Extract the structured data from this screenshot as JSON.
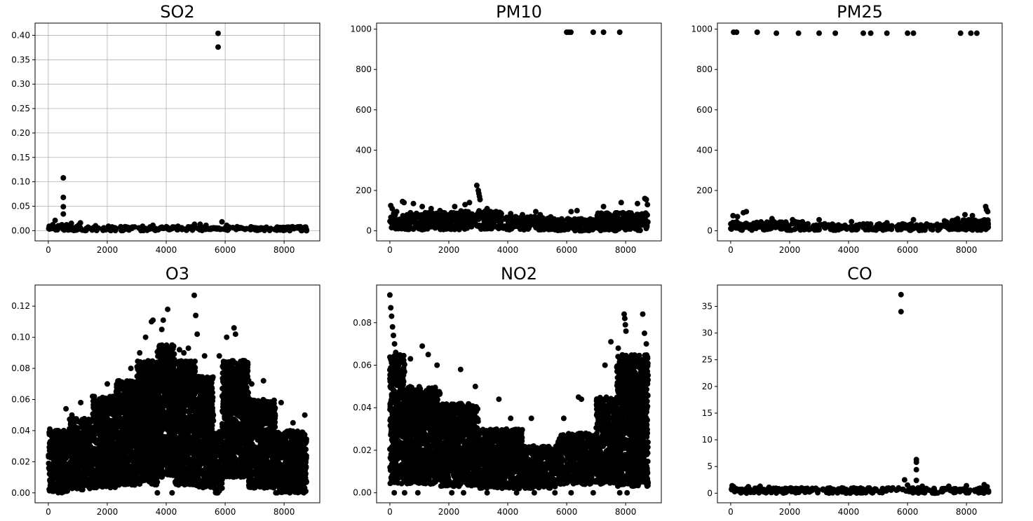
{
  "chart_data": [
    {
      "type": "scatter",
      "title": "SO2",
      "grid": true,
      "xlim": [
        -450,
        9210
      ],
      "ylim": [
        -0.021,
        0.425
      ],
      "xticks": [
        0,
        2000,
        4000,
        6000,
        8000
      ],
      "xticklabels": [
        "0",
        "2000",
        "4000",
        "6000",
        "8000"
      ],
      "yticks": [
        0,
        0.05,
        0.1,
        0.15,
        0.2,
        0.25,
        0.3,
        0.35,
        0.4
      ],
      "yticklabels": [
        "0.00",
        "0.05",
        "0.10",
        "0.15",
        "0.20",
        "0.25",
        "0.30",
        "0.35",
        "0.40"
      ],
      "marker_color": "#000000",
      "bands": [
        {
          "x": [
            0,
            8760
          ],
          "y": [
            0.0,
            0.008
          ]
        }
      ],
      "points": [
        [
          30,
          0.009
        ],
        [
          150,
          0.012
        ],
        [
          230,
          0.021
        ],
        [
          340,
          0.01
        ],
        [
          460,
          0.012
        ],
        [
          510,
          0.108
        ],
        [
          510,
          0.068
        ],
        [
          510,
          0.049
        ],
        [
          510,
          0.034
        ],
        [
          620,
          0.012
        ],
        [
          780,
          0.015
        ],
        [
          1040,
          0.012
        ],
        [
          1090,
          0.016
        ],
        [
          1600,
          0.01
        ],
        [
          2040,
          0.009
        ],
        [
          2600,
          0.008
        ],
        [
          3200,
          0.009
        ],
        [
          3550,
          0.011
        ],
        [
          4400,
          0.009
        ],
        [
          4960,
          0.013
        ],
        [
          5150,
          0.013
        ],
        [
          5350,
          0.011
        ],
        [
          5760,
          0.404
        ],
        [
          5760,
          0.376
        ],
        [
          5890,
          0.018
        ],
        [
          6050,
          0.011
        ],
        [
          7300,
          0.005
        ],
        [
          8100,
          0.007
        ],
        [
          8550,
          0.008
        ],
        [
          8700,
          0.007
        ]
      ]
    },
    {
      "type": "scatter",
      "title": "PM10",
      "grid": false,
      "xlim": [
        -450,
        9210
      ],
      "ylim": [
        -50,
        1030
      ],
      "xticks": [
        0,
        2000,
        4000,
        6000,
        8000
      ],
      "xticklabels": [
        "0",
        "2000",
        "4000",
        "6000",
        "8000"
      ],
      "yticks": [
        0,
        200,
        400,
        600,
        800,
        1000
      ],
      "yticklabels": [
        "0",
        "200",
        "400",
        "600",
        "800",
        "1000"
      ],
      "marker_color": "#000000",
      "bands": [
        {
          "x": [
            0,
            2400
          ],
          "y": [
            5,
            90
          ]
        },
        {
          "x": [
            2400,
            3800
          ],
          "y": [
            8,
            100
          ]
        },
        {
          "x": [
            3800,
            5500
          ],
          "y": [
            5,
            70
          ]
        },
        {
          "x": [
            5500,
            7000
          ],
          "y": [
            0,
            60
          ]
        },
        {
          "x": [
            7000,
            8760
          ],
          "y": [
            0,
            90
          ]
        }
      ],
      "points": [
        [
          30,
          125
        ],
        [
          80,
          110
        ],
        [
          230,
          95
        ],
        [
          430,
          145
        ],
        [
          480,
          140
        ],
        [
          800,
          135
        ],
        [
          1100,
          120
        ],
        [
          1400,
          110
        ],
        [
          1700,
          100
        ],
        [
          2200,
          120
        ],
        [
          2550,
          130
        ],
        [
          2700,
          140
        ],
        [
          2950,
          225
        ],
        [
          3000,
          200
        ],
        [
          3020,
          185
        ],
        [
          3040,
          170
        ],
        [
          3060,
          155
        ],
        [
          3300,
          110
        ],
        [
          3600,
          95
        ],
        [
          4100,
          85
        ],
        [
          4500,
          80
        ],
        [
          4950,
          95
        ],
        [
          5100,
          80
        ],
        [
          6150,
          95
        ],
        [
          6350,
          100
        ],
        [
          7250,
          120
        ],
        [
          7850,
          140
        ],
        [
          8400,
          135
        ],
        [
          8650,
          160
        ],
        [
          8700,
          155
        ],
        [
          8740,
          130
        ],
        [
          6000,
          985
        ],
        [
          6070,
          985
        ],
        [
          6140,
          985
        ],
        [
          6900,
          985
        ],
        [
          7250,
          985
        ],
        [
          7800,
          985
        ]
      ]
    },
    {
      "type": "scatter",
      "title": "PM25",
      "grid": false,
      "xlim": [
        -450,
        9210
      ],
      "ylim": [
        -50,
        1030
      ],
      "xticks": [
        0,
        2000,
        4000,
        6000,
        8000
      ],
      "xticklabels": [
        "0",
        "2000",
        "4000",
        "6000",
        "8000"
      ],
      "yticks": [
        0,
        200,
        400,
        600,
        800,
        1000
      ],
      "yticklabels": [
        "0",
        "200",
        "400",
        "600",
        "800",
        "1000"
      ],
      "marker_color": "#000000",
      "bands": [
        {
          "x": [
            0,
            2500
          ],
          "y": [
            3,
            45
          ]
        },
        {
          "x": [
            2500,
            5500
          ],
          "y": [
            3,
            35
          ]
        },
        {
          "x": [
            5500,
            7200
          ],
          "y": [
            2,
            35
          ]
        },
        {
          "x": [
            7200,
            8760
          ],
          "y": [
            3,
            55
          ]
        }
      ],
      "points": [
        [
          80,
          75
        ],
        [
          230,
          70
        ],
        [
          430,
          90
        ],
        [
          530,
          95
        ],
        [
          1400,
          60
        ],
        [
          2100,
          55
        ],
        [
          3000,
          55
        ],
        [
          4100,
          45
        ],
        [
          5300,
          40
        ],
        [
          6200,
          55
        ],
        [
          7700,
          60
        ],
        [
          7950,
          80
        ],
        [
          8200,
          75
        ],
        [
          8650,
          120
        ],
        [
          8680,
          105
        ],
        [
          8720,
          95
        ],
        [
          100,
          985
        ],
        [
          200,
          985
        ],
        [
          900,
          985
        ],
        [
          1550,
          980
        ],
        [
          2300,
          980
        ],
        [
          3000,
          980
        ],
        [
          3550,
          980
        ],
        [
          4500,
          980
        ],
        [
          4750,
          980
        ],
        [
          5300,
          980
        ],
        [
          6000,
          980
        ],
        [
          6200,
          980
        ],
        [
          7800,
          980
        ],
        [
          8150,
          980
        ],
        [
          8350,
          980
        ]
      ]
    },
    {
      "type": "scatter",
      "title": "O3",
      "grid": false,
      "xlim": [
        -450,
        9210
      ],
      "ylim": [
        -0.0064,
        0.1336
      ],
      "xticks": [
        0,
        2000,
        4000,
        6000,
        8000
      ],
      "xticklabels": [
        "0",
        "2000",
        "4000",
        "6000",
        "8000"
      ],
      "yticks": [
        0,
        0.02,
        0.04,
        0.06,
        0.08,
        0.1,
        0.12
      ],
      "yticklabels": [
        "0.00",
        "0.02",
        "0.04",
        "0.06",
        "0.08",
        "0.10",
        "0.12"
      ],
      "marker_color": "#000000",
      "bands": [
        {
          "x": [
            0,
            700
          ],
          "y": [
            0.0,
            0.04
          ]
        },
        {
          "x": [
            700,
            1500
          ],
          "y": [
            0.002,
            0.048
          ]
        },
        {
          "x": [
            1500,
            2300
          ],
          "y": [
            0.003,
            0.062
          ]
        },
        {
          "x": [
            2300,
            3000
          ],
          "y": [
            0.005,
            0.072
          ]
        },
        {
          "x": [
            3000,
            3700
          ],
          "y": [
            0.005,
            0.085
          ]
        },
        {
          "x": [
            3700,
            4300
          ],
          "y": [
            0.01,
            0.095
          ]
        },
        {
          "x": [
            4300,
            5000
          ],
          "y": [
            0.005,
            0.085
          ]
        },
        {
          "x": [
            5000,
            5600
          ],
          "y": [
            0.003,
            0.075
          ]
        },
        {
          "x": [
            5600,
            5900
          ],
          "y": [
            0.0,
            0.04
          ]
        },
        {
          "x": [
            5900,
            6800
          ],
          "y": [
            0.01,
            0.085
          ]
        },
        {
          "x": [
            6800,
            7700
          ],
          "y": [
            0.003,
            0.06
          ]
        },
        {
          "x": [
            7700,
            8760
          ],
          "y": [
            0.0,
            0.04
          ]
        }
      ],
      "points": [
        [
          50,
          0.041
        ],
        [
          300,
          0.04
        ],
        [
          600,
          0.054
        ],
        [
          800,
          0.05
        ],
        [
          1100,
          0.058
        ],
        [
          1500,
          0.062
        ],
        [
          2000,
          0.07
        ],
        [
          2400,
          0.072
        ],
        [
          2800,
          0.08
        ],
        [
          3100,
          0.09
        ],
        [
          3300,
          0.1
        ],
        [
          3500,
          0.11
        ],
        [
          3550,
          0.111
        ],
        [
          3850,
          0.105
        ],
        [
          3900,
          0.111
        ],
        [
          4050,
          0.118
        ],
        [
          4200,
          0.095
        ],
        [
          4450,
          0.092
        ],
        [
          4600,
          0.09
        ],
        [
          4750,
          0.093
        ],
        [
          4950,
          0.127
        ],
        [
          5000,
          0.114
        ],
        [
          5050,
          0.102
        ],
        [
          5300,
          0.088
        ],
        [
          5700,
          0.0
        ],
        [
          5800,
          0.088
        ],
        [
          6050,
          0.1
        ],
        [
          6300,
          0.106
        ],
        [
          6350,
          0.102
        ],
        [
          6600,
          0.085
        ],
        [
          6900,
          0.07
        ],
        [
          7300,
          0.072
        ],
        [
          7900,
          0.058
        ],
        [
          8300,
          0.045
        ],
        [
          8700,
          0.05
        ],
        [
          3700,
          0.0
        ],
        [
          4200,
          0.0
        ]
      ]
    },
    {
      "type": "scatter",
      "title": "NO2",
      "grid": false,
      "xlim": [
        -450,
        9210
      ],
      "ylim": [
        -0.0047,
        0.0977
      ],
      "xticks": [
        0,
        2000,
        4000,
        6000,
        8000
      ],
      "xticklabels": [
        "0",
        "2000",
        "4000",
        "6000",
        "8000"
      ],
      "yticks": [
        0,
        0.02,
        0.04,
        0.06,
        0.08
      ],
      "yticklabels": [
        "0.00",
        "0.02",
        "0.04",
        "0.06",
        "0.08"
      ],
      "marker_color": "#000000",
      "bands": [
        {
          "x": [
            0,
            500
          ],
          "y": [
            0.004,
            0.065
          ]
        },
        {
          "x": [
            500,
            1700
          ],
          "y": [
            0.004,
            0.05
          ]
        },
        {
          "x": [
            1700,
            3000
          ],
          "y": [
            0.003,
            0.042
          ]
        },
        {
          "x": [
            3000,
            4500
          ],
          "y": [
            0.002,
            0.03
          ]
        },
        {
          "x": [
            4500,
            5700
          ],
          "y": [
            0.002,
            0.022
          ]
        },
        {
          "x": [
            5700,
            7000
          ],
          "y": [
            0.004,
            0.028
          ]
        },
        {
          "x": [
            7000,
            7700
          ],
          "y": [
            0.004,
            0.045
          ]
        },
        {
          "x": [
            7700,
            8760
          ],
          "y": [
            0.003,
            0.065
          ]
        }
      ],
      "points": [
        [
          0,
          0.093
        ],
        [
          30,
          0.087
        ],
        [
          60,
          0.083
        ],
        [
          90,
          0.078
        ],
        [
          120,
          0.074
        ],
        [
          160,
          0.07
        ],
        [
          200,
          0.066
        ],
        [
          260,
          0.06
        ],
        [
          700,
          0.063
        ],
        [
          1100,
          0.069
        ],
        [
          1300,
          0.065
        ],
        [
          1600,
          0.06
        ],
        [
          2400,
          0.058
        ],
        [
          2900,
          0.05
        ],
        [
          3700,
          0.044
        ],
        [
          4100,
          0.035
        ],
        [
          4800,
          0.035
        ],
        [
          5900,
          0.035
        ],
        [
          6400,
          0.045
        ],
        [
          6500,
          0.044
        ],
        [
          7300,
          0.06
        ],
        [
          7500,
          0.071
        ],
        [
          7750,
          0.068
        ],
        [
          7950,
          0.084
        ],
        [
          7970,
          0.082
        ],
        [
          7990,
          0.079
        ],
        [
          8010,
          0.076
        ],
        [
          8580,
          0.084
        ],
        [
          8640,
          0.075
        ],
        [
          8700,
          0.07
        ],
        [
          150,
          0.0
        ],
        [
          500,
          0.0
        ],
        [
          950,
          0.0
        ],
        [
          2100,
          0.0
        ],
        [
          2500,
          0.0
        ],
        [
          3300,
          0.0
        ],
        [
          4300,
          0.0
        ],
        [
          4900,
          0.0
        ],
        [
          5600,
          0.0
        ],
        [
          6150,
          0.0
        ],
        [
          6900,
          0.0
        ],
        [
          7800,
          0.0
        ],
        [
          8050,
          0.0
        ]
      ]
    },
    {
      "type": "scatter",
      "title": "CO",
      "grid": false,
      "xlim": [
        -450,
        9210
      ],
      "ylim": [
        -1.8,
        39
      ],
      "xticks": [
        0,
        2000,
        4000,
        6000,
        8000
      ],
      "xticklabels": [
        "0",
        "2000",
        "4000",
        "6000",
        "8000"
      ],
      "yticks": [
        0,
        5,
        10,
        15,
        20,
        25,
        30,
        35
      ],
      "yticklabels": [
        "0",
        "5",
        "10",
        "15",
        "20",
        "25",
        "30",
        "35"
      ],
      "marker_color": "#000000",
      "bands": [
        {
          "x": [
            0,
            8760
          ],
          "y": [
            0.0,
            1.0
          ]
        }
      ],
      "points": [
        [
          50,
          1.4
        ],
        [
          100,
          1.2
        ],
        [
          600,
          1.2
        ],
        [
          1000,
          1.3
        ],
        [
          1300,
          1.1
        ],
        [
          2600,
          0.9
        ],
        [
          4300,
          0.8
        ],
        [
          5500,
          1.0
        ],
        [
          5780,
          37.2
        ],
        [
          5780,
          34.0
        ],
        [
          5900,
          2.5
        ],
        [
          6000,
          1.5
        ],
        [
          6300,
          6.3
        ],
        [
          6300,
          5.8
        ],
        [
          6300,
          4.4
        ],
        [
          6300,
          2.4
        ],
        [
          6500,
          1.3
        ],
        [
          7400,
          1.3
        ],
        [
          8000,
          1.4
        ],
        [
          8600,
          1.6
        ],
        [
          8700,
          1.2
        ]
      ]
    }
  ]
}
